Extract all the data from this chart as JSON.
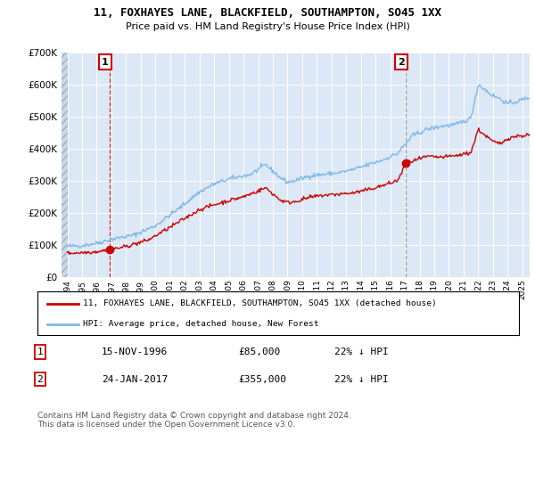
{
  "title": "11, FOXHAYES LANE, BLACKFIELD, SOUTHAMPTON, SO45 1XX",
  "subtitle": "Price paid vs. HM Land Registry's House Price Index (HPI)",
  "hpi_color": "#7EB8E8",
  "price_color": "#CC0000",
  "bg_color": "#DCE8F5",
  "ylim": [
    0,
    700000
  ],
  "yticks": [
    0,
    100000,
    200000,
    300000,
    400000,
    500000,
    600000,
    700000
  ],
  "ytick_labels": [
    "£0",
    "£100K",
    "£200K",
    "£300K",
    "£400K",
    "£500K",
    "£600K",
    "£700K"
  ],
  "purchase1_x": 1996.875,
  "purchase1_price": 85000,
  "purchase2_x": 2017.07,
  "purchase2_price": 355000,
  "legend_line1": "11, FOXHAYES LANE, BLACKFIELD, SOUTHAMPTON, SO45 1XX (detached house)",
  "legend_line2": "HPI: Average price, detached house, New Forest",
  "table_row1": [
    "1",
    "15-NOV-1996",
    "£85,000",
    "22% ↓ HPI"
  ],
  "table_row2": [
    "2",
    "24-JAN-2017",
    "£355,000",
    "22% ↓ HPI"
  ],
  "footer": "Contains HM Land Registry data © Crown copyright and database right 2024.\nThis data is licensed under the Open Government Licence v3.0.",
  "xlim_start": 1993.6,
  "xlim_end": 2025.5,
  "xtick_years": [
    1994,
    1995,
    1996,
    1997,
    1998,
    1999,
    2000,
    2001,
    2002,
    2003,
    2004,
    2005,
    2006,
    2007,
    2008,
    2009,
    2010,
    2011,
    2012,
    2013,
    2014,
    2015,
    2016,
    2017,
    2018,
    2019,
    2020,
    2021,
    2022,
    2023,
    2024,
    2025
  ]
}
